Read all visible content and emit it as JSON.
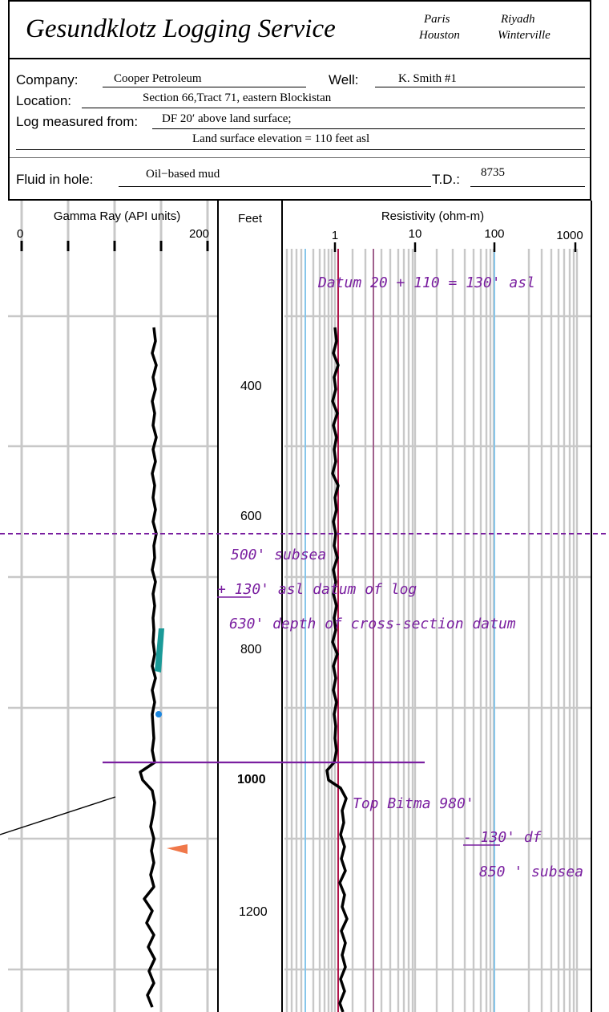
{
  "header": {
    "company_name": "Gesundklotz Logging Service",
    "cities": [
      "Paris",
      "Houston",
      "Riyadh",
      "Winterville"
    ],
    "company_label": "Company:",
    "company_value": "Cooper Petroleum",
    "well_label": "Well:",
    "well_value": "K. Smith #1",
    "location_label": "Location:",
    "location_value": "Section 66,Tract 71, eastern Blockistan",
    "measured_label": "Log measured from:",
    "measured_value": "DF 20′ above land surface;",
    "measured_value_2": "Land surface elevation = 110 feet asl",
    "fluid_label": "Fluid in hole:",
    "fluid_value": "Oil−based mud",
    "td_label": "T.D.:",
    "td_value": "8735"
  },
  "tracks": {
    "gamma_title": "Gamma Ray (API units)",
    "gamma_min": "0",
    "gamma_max": "200",
    "depth_title": "Feet",
    "resistivity_title": "Resistivity (ohm-m)",
    "resistivity_ticks": [
      "1",
      "10",
      "100",
      "1000"
    ]
  },
  "depth_labels": [
    "400",
    "600",
    "800",
    "1000",
    "1200"
  ],
  "annotations": {
    "datum": "Datum 20 + 110 = 130' asl",
    "subsea": "500' subsea",
    "plus_asl": "+ 130' asl datum of log",
    "cross_section": "630' depth of cross-section datum",
    "top_bitma": "Top Bitma  980'",
    "minus_df": "- 130' df",
    "result_subsea": "850 ' subsea"
  },
  "colors": {
    "annotation": "#7a1fa0",
    "grid": "#c8c8c8",
    "light_blue": "#87c6ea",
    "red_line": "#b0154a",
    "mauve_line": "#a0608c",
    "teal_marker": "#1a9a98",
    "blue_dot": "#1b86e0",
    "orange_marker": "#f0784a"
  }
}
